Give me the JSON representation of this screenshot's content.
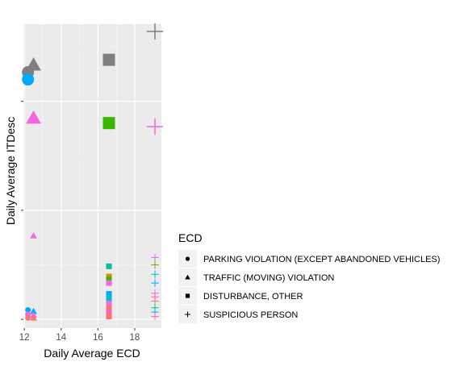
{
  "chart_data": {
    "type": "scatter",
    "title": "",
    "xlabel": "Daily Average ECD",
    "ylabel": "Daily Average ITDesc",
    "xlim": [
      11.95,
      19.45
    ],
    "ylim": [
      -0.12,
      4.06
    ],
    "x_ticks": [
      12,
      14,
      16,
      18
    ],
    "y_ticks": [
      0,
      1.5,
      3
    ],
    "grid": true,
    "panel_background": "#ebebeb",
    "legend": {
      "title": "ECD",
      "position": "right",
      "entries": [
        {
          "label": "PARKING VIOLATION (EXCEPT ABANDONED VEHICLES)",
          "shape": "circle"
        },
        {
          "label": "TRAFFIC (MOVING) VIOLATION",
          "shape": "triangle"
        },
        {
          "label": "DISTURBANCE, OTHER",
          "shape": "square"
        },
        {
          "label": "SUSPICIOUS PERSON",
          "shape": "plus"
        }
      ]
    },
    "points": [
      {
        "x": 19.1,
        "y": 3.96,
        "shape": "plus",
        "color": "#7f7f7f",
        "size": "large"
      },
      {
        "x": 16.6,
        "y": 3.57,
        "shape": "square",
        "color": "#7f7f7f",
        "size": "large"
      },
      {
        "x": 12.5,
        "y": 3.5,
        "shape": "triangle",
        "color": "#7f7f7f",
        "size": "large"
      },
      {
        "x": 12.2,
        "y": 3.4,
        "shape": "circle",
        "color": "#7f7f7f",
        "size": "large"
      },
      {
        "x": 12.2,
        "y": 3.3,
        "shape": "circle",
        "color": "#00a9ff",
        "size": "large"
      },
      {
        "x": 12.5,
        "y": 2.77,
        "shape": "triangle",
        "color": "#f564e3",
        "size": "large"
      },
      {
        "x": 16.6,
        "y": 2.7,
        "shape": "square",
        "color": "#39b600",
        "size": "large"
      },
      {
        "x": 19.1,
        "y": 2.65,
        "shape": "plus",
        "color": "#f564e3",
        "size": "large"
      },
      {
        "x": 12.5,
        "y": 1.15,
        "shape": "triangle",
        "color": "#f564e3",
        "size": "small"
      },
      {
        "x": 16.6,
        "y": 0.73,
        "shape": "square",
        "color": "#00c19a",
        "size": "small"
      },
      {
        "x": 16.6,
        "y": 0.59,
        "shape": "square",
        "color": "#cd9600",
        "size": "small"
      },
      {
        "x": 16.6,
        "y": 0.55,
        "shape": "square",
        "color": "#39b600",
        "size": "small"
      },
      {
        "x": 16.6,
        "y": 0.5,
        "shape": "square",
        "color": "#f564e3",
        "size": "small"
      },
      {
        "x": 16.6,
        "y": 0.35,
        "shape": "square",
        "color": "#00a9ff",
        "size": "small"
      },
      {
        "x": 16.6,
        "y": 0.29,
        "shape": "square",
        "color": "#00bfc4",
        "size": "small"
      },
      {
        "x": 16.6,
        "y": 0.22,
        "shape": "square",
        "color": "#e76bf3",
        "size": "small"
      },
      {
        "x": 16.6,
        "y": 0.16,
        "shape": "square",
        "color": "#f8766d",
        "size": "small"
      },
      {
        "x": 16.6,
        "y": 0.1,
        "shape": "square",
        "color": "#ff61c3",
        "size": "small"
      },
      {
        "x": 16.6,
        "y": 0.04,
        "shape": "square",
        "color": "#f8766d",
        "size": "small"
      },
      {
        "x": 19.1,
        "y": 0.85,
        "shape": "plus",
        "color": "#e76bf3",
        "size": "small"
      },
      {
        "x": 19.1,
        "y": 0.75,
        "shape": "plus",
        "color": "#7cae00",
        "size": "small"
      },
      {
        "x": 19.1,
        "y": 0.62,
        "shape": "plus",
        "color": "#00bfc4",
        "size": "small"
      },
      {
        "x": 19.1,
        "y": 0.5,
        "shape": "plus",
        "color": "#00a9ff",
        "size": "small"
      },
      {
        "x": 19.1,
        "y": 0.36,
        "shape": "plus",
        "color": "#f564e3",
        "size": "small"
      },
      {
        "x": 19.1,
        "y": 0.31,
        "shape": "plus",
        "color": "#ff61c3",
        "size": "small"
      },
      {
        "x": 19.1,
        "y": 0.25,
        "shape": "plus",
        "color": "#f8766d",
        "size": "small"
      },
      {
        "x": 19.1,
        "y": 0.16,
        "shape": "plus",
        "color": "#00c19a",
        "size": "small"
      },
      {
        "x": 19.1,
        "y": 0.1,
        "shape": "plus",
        "color": "#00a9ff",
        "size": "small"
      },
      {
        "x": 19.1,
        "y": 0.04,
        "shape": "plus",
        "color": "#ff61c3",
        "size": "small"
      },
      {
        "x": 12.2,
        "y": 0.13,
        "shape": "circle",
        "color": "#00a9ff",
        "size": "small"
      },
      {
        "x": 12.2,
        "y": 0.07,
        "shape": "circle",
        "color": "#f564e3",
        "size": "small"
      },
      {
        "x": 12.2,
        "y": 0.02,
        "shape": "circle",
        "color": "#f8766d",
        "size": "small"
      },
      {
        "x": 12.5,
        "y": 0.11,
        "shape": "triangle",
        "color": "#00a9ff",
        "size": "small"
      },
      {
        "x": 12.5,
        "y": 0.06,
        "shape": "triangle",
        "color": "#e76bf3",
        "size": "small"
      },
      {
        "x": 12.5,
        "y": 0.02,
        "shape": "triangle",
        "color": "#f8766d",
        "size": "small"
      }
    ]
  }
}
